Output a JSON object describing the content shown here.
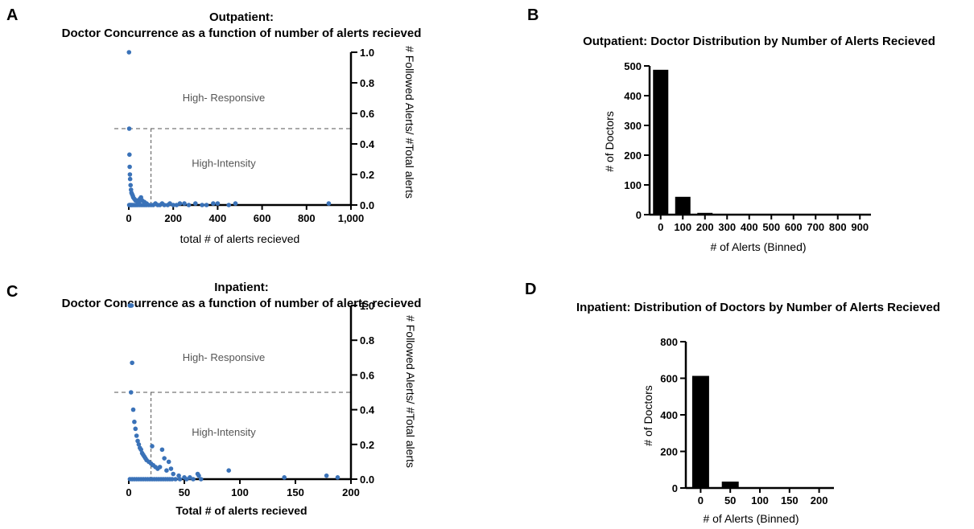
{
  "panels": {
    "A": "A",
    "B": "B",
    "C": "C",
    "D": "D"
  },
  "chart_data": [
    {
      "id": "A",
      "type": "scatter",
      "title": "Outpatient:",
      "subtitle": "Doctor Concurrence as a function of number of alerts recieved",
      "xlabel": "total # of alerts recieved",
      "ylabel": "# Followed Alerts/ #Total alerts",
      "xlim": [
        0,
        1000
      ],
      "ylim": [
        0,
        1.0
      ],
      "xticks": [
        0,
        200,
        400,
        600,
        800,
        1000
      ],
      "xtick_labels": [
        "0",
        "200",
        "400",
        "600",
        "800",
        "1,000"
      ],
      "yticks": [
        0.0,
        0.2,
        0.4,
        0.6,
        0.8,
        1.0
      ],
      "ytick_labels": [
        "0.0",
        "0.2",
        "0.4",
        "0.6",
        "0.8",
        "1.0"
      ],
      "y_axis_side": "right",
      "threshold_y": 0.5,
      "threshold_x": 100,
      "region_labels": [
        "High- Responsive",
        "High-Intensity"
      ],
      "point_color": "#3a72b8",
      "points": [
        [
          1,
          1.0
        ],
        [
          2,
          0.5
        ],
        [
          3,
          0.33
        ],
        [
          4,
          0.25
        ],
        [
          5,
          0.2
        ],
        [
          6,
          0.17
        ],
        [
          8,
          0.13
        ],
        [
          10,
          0.1
        ],
        [
          12,
          0.08
        ],
        [
          15,
          0.07
        ],
        [
          18,
          0.06
        ],
        [
          20,
          0.05
        ],
        [
          25,
          0.04
        ],
        [
          30,
          0.03
        ],
        [
          35,
          0.03
        ],
        [
          40,
          0.02
        ],
        [
          45,
          0.02
        ],
        [
          50,
          0.04
        ],
        [
          55,
          0.05
        ],
        [
          60,
          0.03
        ],
        [
          70,
          0.02
        ],
        [
          80,
          0.01
        ],
        [
          2,
          0
        ],
        [
          5,
          0
        ],
        [
          8,
          0
        ],
        [
          12,
          0
        ],
        [
          16,
          0
        ],
        [
          22,
          0
        ],
        [
          28,
          0
        ],
        [
          34,
          0
        ],
        [
          40,
          0
        ],
        [
          48,
          0
        ],
        [
          56,
          0
        ],
        [
          64,
          0
        ],
        [
          72,
          0
        ],
        [
          80,
          0
        ],
        [
          90,
          0
        ],
        [
          100,
          0
        ],
        [
          110,
          0
        ],
        [
          120,
          0.01
        ],
        [
          130,
          0
        ],
        [
          140,
          0
        ],
        [
          150,
          0.01
        ],
        [
          160,
          0
        ],
        [
          175,
          0
        ],
        [
          185,
          0.01
        ],
        [
          200,
          0
        ],
        [
          215,
          0
        ],
        [
          230,
          0.01
        ],
        [
          250,
          0.01
        ],
        [
          270,
          0
        ],
        [
          300,
          0.01
        ],
        [
          330,
          0
        ],
        [
          350,
          0
        ],
        [
          380,
          0.01
        ],
        [
          400,
          0.01
        ],
        [
          450,
          0
        ],
        [
          480,
          0.01
        ],
        [
          900,
          0.01
        ]
      ]
    },
    {
      "id": "B",
      "type": "bar",
      "title": "Outpatient: Doctor Distribution by Number of Alerts Recieved",
      "xlabel": "# of Alerts (Binned)",
      "ylabel": "# of Doctors",
      "categories": [
        "0",
        "100",
        "200",
        "300",
        "400",
        "500",
        "600",
        "700",
        "800",
        "900"
      ],
      "values": [
        487,
        60,
        6,
        2,
        2,
        1,
        1,
        1,
        1,
        1
      ],
      "ylim": [
        0,
        500
      ],
      "yticks": [
        0,
        100,
        200,
        300,
        400,
        500
      ],
      "bar_color": "#000000"
    },
    {
      "id": "C",
      "type": "scatter",
      "title": "Inpatient:",
      "subtitle": "Doctor Concurrence as a function of number of alerts recieved",
      "xlabel": "Total # of alerts recieved",
      "ylabel": "# Followed Alerts/ #Total alerts",
      "xlim": [
        0,
        200
      ],
      "ylim": [
        0,
        1.0
      ],
      "xticks": [
        0,
        50,
        100,
        150,
        200
      ],
      "xtick_labels": [
        "0",
        "50",
        "100",
        "150",
        "200"
      ],
      "yticks": [
        0.0,
        0.2,
        0.4,
        0.6,
        0.8,
        1.0
      ],
      "ytick_labels": [
        "0.0",
        "0.2",
        "0.4",
        "0.6",
        "0.8",
        "1.0"
      ],
      "y_axis_side": "right",
      "threshold_y": 0.5,
      "threshold_x": 20,
      "region_labels": [
        "High- Responsive",
        "High-Intensity"
      ],
      "point_color": "#3a72b8",
      "points": [
        [
          1,
          1.0
        ],
        [
          1.5,
          1.0
        ],
        [
          2,
          1.0
        ],
        [
          2.5,
          1.0
        ],
        [
          3,
          0.67
        ],
        [
          2,
          0.5
        ],
        [
          4,
          0.4
        ],
        [
          5,
          0.33
        ],
        [
          6,
          0.29
        ],
        [
          7,
          0.25
        ],
        [
          8,
          0.22
        ],
        [
          9,
          0.2
        ],
        [
          10,
          0.18
        ],
        [
          11,
          0.17
        ],
        [
          12,
          0.15
        ],
        [
          13,
          0.14
        ],
        [
          14,
          0.13
        ],
        [
          15,
          0.12
        ],
        [
          16,
          0.11
        ],
        [
          18,
          0.1
        ],
        [
          20,
          0.09
        ],
        [
          21,
          0.19
        ],
        [
          22,
          0.08
        ],
        [
          24,
          0.07
        ],
        [
          26,
          0.06
        ],
        [
          28,
          0.07
        ],
        [
          30,
          0.17
        ],
        [
          32,
          0.12
        ],
        [
          34,
          0.05
        ],
        [
          36,
          0.1
        ],
        [
          38,
          0.06
        ],
        [
          40,
          0.03
        ],
        [
          45,
          0.02
        ],
        [
          50,
          0.01
        ],
        [
          55,
          0.01
        ],
        [
          62,
          0.03
        ],
        [
          63,
          0.02
        ],
        [
          90,
          0.05
        ],
        [
          140,
          0.01
        ],
        [
          178,
          0.02
        ],
        [
          188,
          0.01
        ],
        [
          1,
          0
        ],
        [
          3,
          0
        ],
        [
          5,
          0
        ],
        [
          7,
          0
        ],
        [
          9,
          0
        ],
        [
          11,
          0
        ],
        [
          13,
          0
        ],
        [
          15,
          0
        ],
        [
          17,
          0
        ],
        [
          19,
          0
        ],
        [
          21,
          0
        ],
        [
          23,
          0
        ],
        [
          25,
          0
        ],
        [
          27,
          0
        ],
        [
          29,
          0
        ],
        [
          31,
          0
        ],
        [
          33,
          0
        ],
        [
          35,
          0
        ],
        [
          37,
          0
        ],
        [
          39,
          0
        ],
        [
          42,
          0
        ],
        [
          46,
          0
        ],
        [
          52,
          0
        ],
        [
          58,
          0
        ],
        [
          65,
          0
        ]
      ]
    },
    {
      "id": "D",
      "type": "bar",
      "title": "Inpatient: Distribution of Doctors by Number of Alerts Recieved",
      "xlabel": "# of Alerts (Binned)",
      "ylabel": "# of Doctors",
      "categories": [
        "0",
        "50",
        "100",
        "150",
        "200"
      ],
      "values": [
        613,
        35,
        2,
        1,
        1
      ],
      "ylim": [
        0,
        800
      ],
      "yticks": [
        0,
        200,
        400,
        600,
        800
      ],
      "bar_color": "#000000"
    }
  ]
}
